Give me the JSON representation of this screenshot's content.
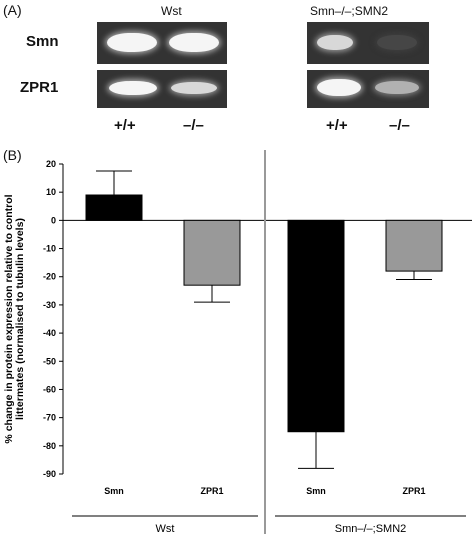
{
  "panel_a": {
    "label": "(A)",
    "groups": [
      {
        "name": "Wst",
        "genotypes": [
          "+/+",
          "–/–"
        ]
      },
      {
        "name": "Smn–/–;SMN2",
        "genotypes": [
          "+/+",
          "–/–"
        ]
      }
    ],
    "rows": [
      "Smn",
      "ZPR1"
    ],
    "band_intensity": {
      "wst_smn": [
        0.95,
        0.95
      ],
      "wst_zpr1": [
        0.95,
        0.8
      ],
      "mut_smn": [
        0.8,
        0.05
      ],
      "mut_zpr1": [
        0.95,
        0.6
      ]
    }
  },
  "panel_b": {
    "label": "(B)"
  },
  "chart_data": {
    "type": "bar",
    "ylabel": "% change in protein expression relative to control littermates (normalised to tubulin levels)",
    "ylabel_lines": [
      "% change in protein expression relative to control",
      "littermates (normalised to tubulin levels)"
    ],
    "ylim": [
      -90,
      20
    ],
    "yticks": [
      20,
      10,
      0,
      -10,
      -20,
      -30,
      -40,
      -50,
      -60,
      -70,
      -80,
      -90
    ],
    "groups": [
      {
        "name": "Wst",
        "bars": [
          {
            "label": "Smn",
            "value": 9,
            "error": 8.5,
            "color": "#000000"
          },
          {
            "label": "ZPR1",
            "value": -23,
            "error": 6,
            "color": "#999999"
          }
        ]
      },
      {
        "name": "Smn–/–;SMN2",
        "bars": [
          {
            "label": "Smn",
            "value": -75,
            "error": 13,
            "color": "#000000"
          },
          {
            "label": "ZPR1",
            "value": -18,
            "error": 3,
            "color": "#999999"
          }
        ]
      }
    ],
    "grid": false,
    "legend": "none"
  }
}
